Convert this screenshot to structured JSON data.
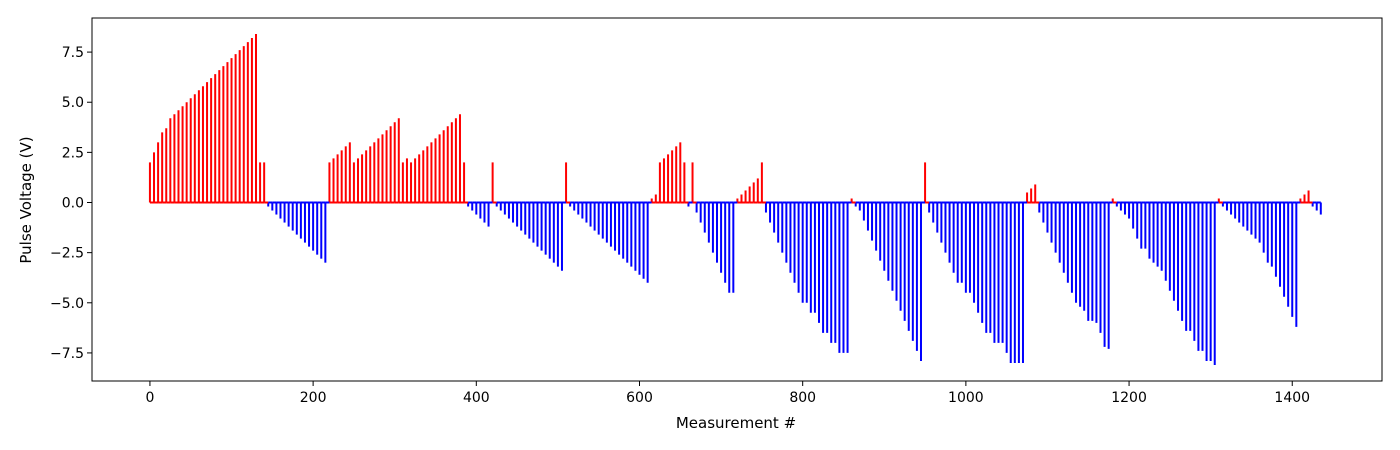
{
  "chart_data": {
    "type": "stem",
    "title": "",
    "xlabel": "Measurement #",
    "ylabel": "Pulse Voltage (V)",
    "xlim": [
      -71,
      1510
    ],
    "ylim": [
      -8.9,
      9.2
    ],
    "x_ticks": [
      0,
      200,
      400,
      600,
      800,
      1000,
      1200,
      1400
    ],
    "y_ticks": [
      -7.5,
      -5.0,
      -2.5,
      0.0,
      2.5,
      5.0,
      7.5
    ],
    "x_tick_labels": [
      "0",
      "200",
      "400",
      "600",
      "800",
      "1000",
      "1200",
      "1400"
    ],
    "y_tick_labels": [
      "−7.5",
      "−5.0",
      "−2.5",
      "0.0",
      "2.5",
      "5.0",
      "7.5"
    ],
    "grid": false,
    "colors": {
      "positive": "#ff0000",
      "negative": "#0000ff",
      "axes": "#000000"
    },
    "step": 5,
    "values": [
      2.0,
      2.5,
      3.0,
      3.5,
      3.7,
      4.2,
      4.4,
      4.6,
      4.8,
      5.0,
      5.2,
      5.4,
      5.6,
      5.8,
      6.0,
      6.2,
      6.4,
      6.6,
      6.8,
      7.0,
      7.2,
      7.4,
      7.6,
      7.8,
      8.0,
      8.2,
      8.4,
      2.0,
      2.0,
      -0.2,
      -0.4,
      -0.6,
      -0.8,
      -1.0,
      -1.2,
      -1.4,
      -1.6,
      -1.8,
      -2.0,
      -2.2,
      -2.4,
      -2.6,
      -2.8,
      -3.0,
      2.0,
      2.2,
      2.4,
      2.6,
      2.8,
      3.0,
      2.0,
      2.2,
      2.4,
      2.6,
      2.8,
      3.0,
      3.2,
      3.4,
      3.6,
      3.8,
      4.0,
      4.2,
      2.0,
      2.2,
      2.0,
      2.2,
      2.4,
      2.6,
      2.8,
      3.0,
      3.2,
      3.4,
      3.6,
      3.8,
      4.0,
      4.2,
      4.4,
      2.0,
      -0.2,
      -0.4,
      -0.6,
      -0.8,
      -1.0,
      -1.2,
      2.0,
      -0.2,
      -0.4,
      -0.6,
      -0.8,
      -1.0,
      -1.2,
      -1.4,
      -1.6,
      -1.8,
      -2.0,
      -2.2,
      -2.4,
      -2.6,
      -2.8,
      -3.0,
      -3.2,
      -3.4,
      2.0,
      -0.2,
      -0.4,
      -0.6,
      -0.8,
      -1.0,
      -1.2,
      -1.4,
      -1.6,
      -1.8,
      -2.0,
      -2.2,
      -2.4,
      -2.6,
      -2.8,
      -3.0,
      -3.2,
      -3.4,
      -3.6,
      -3.8,
      -4.0,
      0.2,
      0.4,
      2.0,
      2.2,
      2.4,
      2.6,
      2.8,
      3.0,
      2.0,
      -0.2,
      2.0,
      -0.5,
      -1.0,
      -1.5,
      -2.0,
      -2.5,
      -3.0,
      -3.5,
      -4.0,
      -4.5,
      -4.5,
      0.2,
      0.4,
      0.6,
      0.8,
      1.0,
      1.2,
      2.0,
      -0.5,
      -1.0,
      -1.5,
      -2.0,
      -2.5,
      -3.0,
      -3.5,
      -4.0,
      -4.5,
      -5.0,
      -5.0,
      -5.5,
      -5.5,
      -6.0,
      -6.5,
      -6.5,
      -7.0,
      -7.0,
      -7.5,
      -7.5,
      -7.5,
      0.2,
      -0.2,
      -0.4,
      -0.9,
      -1.4,
      -1.9,
      -2.4,
      -2.9,
      -3.4,
      -3.9,
      -4.4,
      -4.9,
      -5.4,
      -5.9,
      -6.4,
      -6.9,
      -7.4,
      -7.9,
      2.0,
      -0.5,
      -1.0,
      -1.5,
      -2.0,
      -2.5,
      -3.0,
      -3.5,
      -4.0,
      -4.0,
      -4.5,
      -4.5,
      -5.0,
      -5.5,
      -6.0,
      -6.5,
      -6.5,
      -7.0,
      -7.0,
      -7.0,
      -7.5,
      -8.0,
      -8.0,
      -8.0,
      -8.0,
      0.5,
      0.7,
      0.9,
      -0.5,
      -1.0,
      -1.5,
      -2.0,
      -2.5,
      -3.0,
      -3.5,
      -4.0,
      -4.5,
      -5.0,
      -5.2,
      -5.4,
      -5.9,
      -5.9,
      -6.0,
      -6.5,
      -7.2,
      -7.3,
      0.2,
      -0.2,
      -0.4,
      -0.6,
      -0.8,
      -1.3,
      -1.8,
      -2.3,
      -2.3,
      -2.8,
      -3.0,
      -3.2,
      -3.4,
      -3.9,
      -4.4,
      -4.9,
      -5.4,
      -5.9,
      -6.4,
      -6.4,
      -6.9,
      -7.4,
      -7.4,
      -7.9,
      -7.9,
      -8.1,
      0.2,
      -0.2,
      -0.4,
      -0.6,
      -0.8,
      -1.0,
      -1.2,
      -1.4,
      -1.6,
      -1.8,
      -2.0,
      -2.5,
      -3.0,
      -3.2,
      -3.7,
      -4.2,
      -4.7,
      -5.2,
      -5.7,
      -6.2,
      0.2,
      0.4,
      0.6,
      -0.2,
      -0.4,
      -0.6
    ]
  }
}
